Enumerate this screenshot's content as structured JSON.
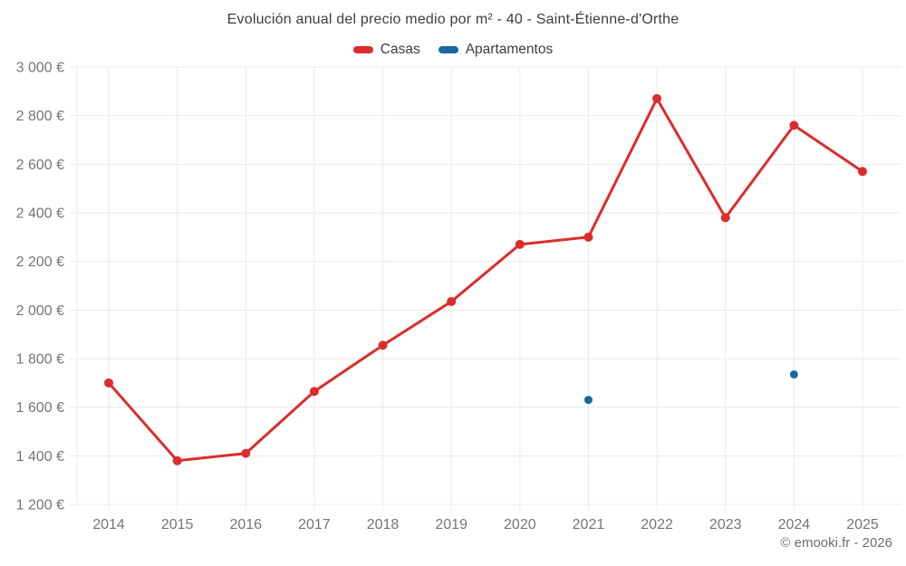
{
  "page": {
    "title": "Evolución anual del precio medio por m² - 40 - Saint-Étienne-d'Orthe",
    "footer_credit": "© emooki.fr - 2026"
  },
  "colors": {
    "background": "#ffffff",
    "grid": "#e9e9e9",
    "axis_text": "#757575",
    "title_text": "#3d3d3d",
    "legend_text": "#3d3d3d",
    "footer_text": "#6e6e6e",
    "casas": "#dd2c2c",
    "apartamentos": "#1569a0"
  },
  "chart_data": {
    "type": "line",
    "title": "Evolución anual del precio medio por m² - 40 - Saint-Étienne-d'Orthe",
    "x": [
      2014,
      2015,
      2016,
      2017,
      2018,
      2019,
      2020,
      2021,
      2022,
      2023,
      2024,
      2025
    ],
    "series": [
      {
        "name": "Casas",
        "color": "#dd2c2c",
        "point_radius": 5,
        "line_width": 3,
        "values": [
          1700,
          1380,
          1410,
          1665,
          1855,
          2035,
          2270,
          2300,
          2870,
          2380,
          2760,
          2570
        ]
      },
      {
        "name": "Apartamentos",
        "color": "#1569a0",
        "point_radius": 4.5,
        "line_width": 3,
        "values": [
          null,
          null,
          null,
          null,
          null,
          null,
          null,
          1630,
          null,
          null,
          1735,
          null
        ]
      }
    ],
    "ylim": [
      1200,
      3000
    ],
    "y_tick_step": 200,
    "y_tick_labels": [
      "1 200 €",
      "1 400 €",
      "1 600 €",
      "1 800 €",
      "2 000 €",
      "2 200 €",
      "2 400 €",
      "2 600 €",
      "2 800 €",
      "3 000 €"
    ],
    "xlabel": "",
    "ylabel": "",
    "grid": true,
    "legend_position": "top"
  }
}
